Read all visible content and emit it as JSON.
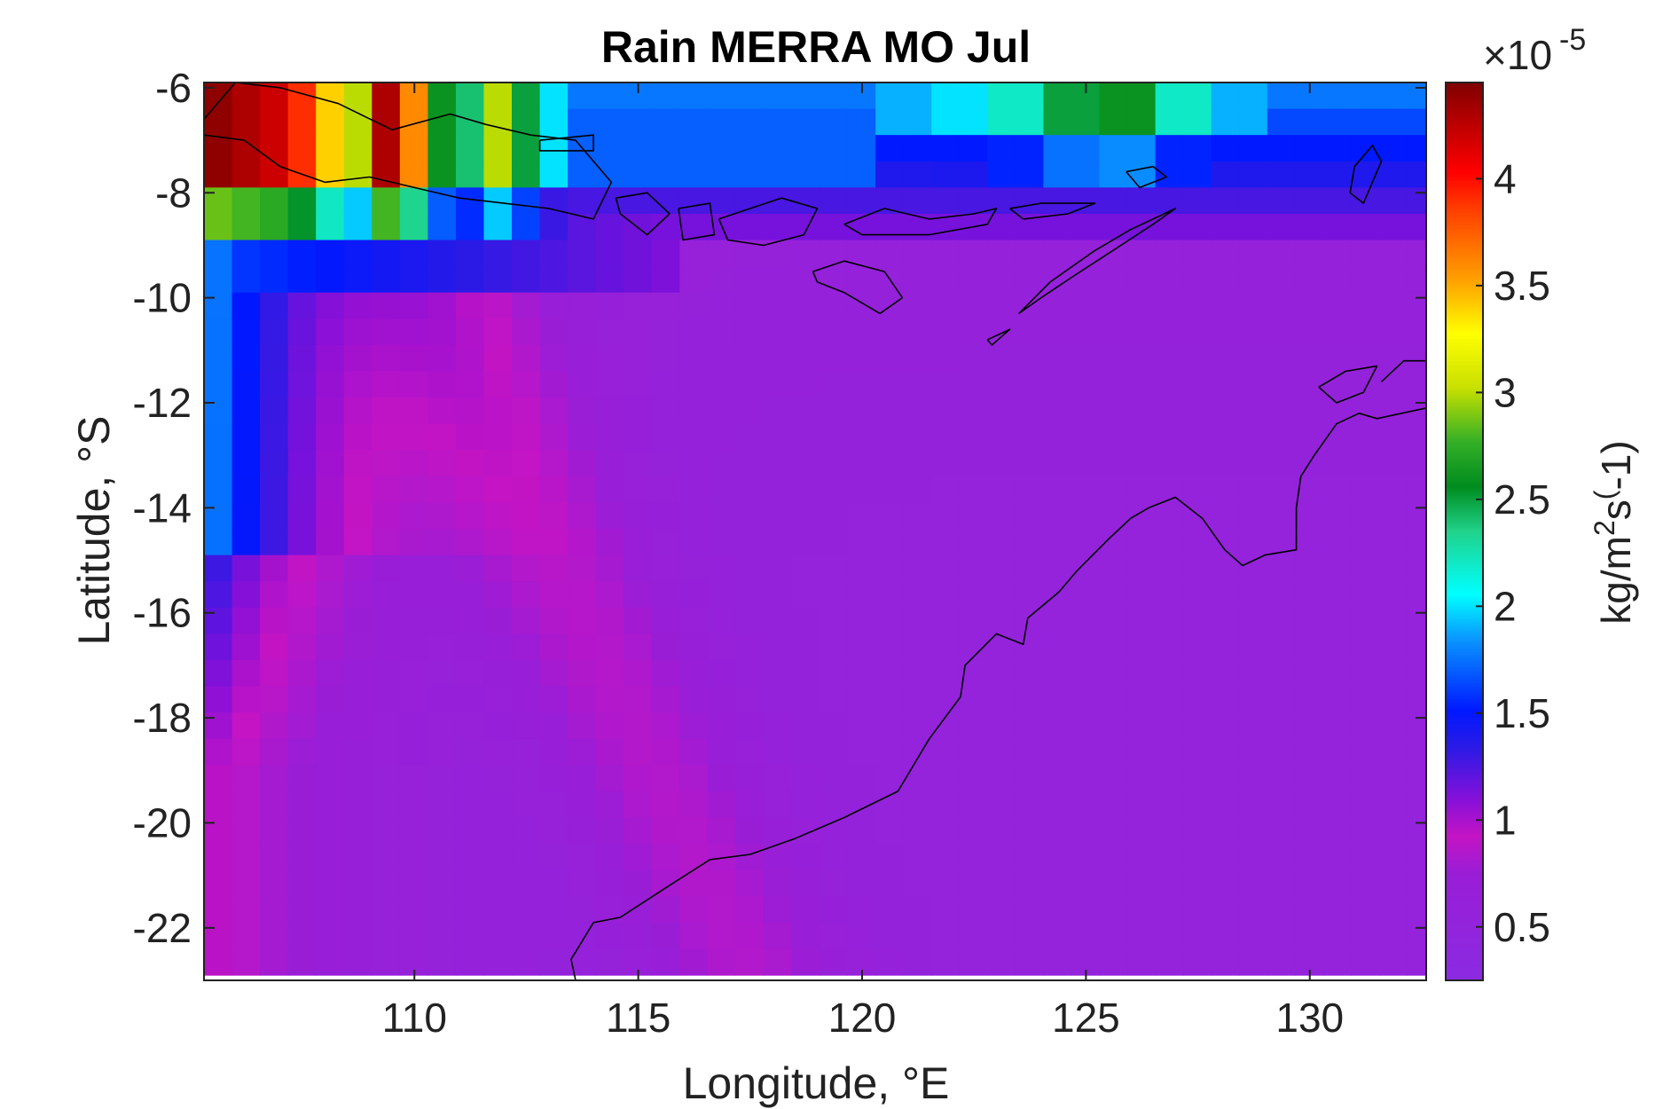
{
  "chart_data": {
    "type": "heatmap",
    "title": "Rain MERRA MO Jul",
    "xlabel": "Longitude, °E",
    "ylabel": "Latitude, °S",
    "xlim": [
      105.3,
      132.6
    ],
    "ylim": [
      -23.0,
      -5.9
    ],
    "x_ticks": [
      110,
      115,
      120,
      125,
      130
    ],
    "x_tick_labels": [
      "110",
      "115",
      "120",
      "125",
      "130"
    ],
    "y_ticks": [
      -6,
      -8,
      -10,
      -12,
      -14,
      -16,
      -18,
      -20,
      -22
    ],
    "y_tick_labels": [
      "-6",
      "-8",
      "-10",
      "-12",
      "-14",
      "-16",
      "-18",
      "-20",
      "-22"
    ],
    "grid": false,
    "colorbar": {
      "label": "kg/m²s⁽-1)",
      "label_main": "kg/m",
      "label_sup1": "2",
      "label_mid": "s",
      "label_sup2": "(",
      "label_end": "-1)",
      "scale_prefix": "×10",
      "scale_exponent": "-5",
      "range": [
        0.25,
        4.45
      ],
      "ticks": [
        0.5,
        1,
        1.5,
        2,
        2.5,
        3,
        3.5,
        4
      ],
      "tick_labels": [
        "0.5",
        "1",
        "1.5",
        "2",
        "2.5",
        "3",
        "3.5",
        "4"
      ],
      "colormap_stops": [
        [
          0.0,
          "#8a2be2"
        ],
        [
          0.12,
          "#9a1dd6"
        ],
        [
          0.16,
          "#c414c4"
        ],
        [
          0.2,
          "#8810d8"
        ],
        [
          0.26,
          "#2a1ae6"
        ],
        [
          0.3,
          "#0018ff"
        ],
        [
          0.38,
          "#0a96ff"
        ],
        [
          0.43,
          "#00ffff"
        ],
        [
          0.5,
          "#20d28a"
        ],
        [
          0.55,
          "#008c1e"
        ],
        [
          0.6,
          "#34b026"
        ],
        [
          0.66,
          "#c8e000"
        ],
        [
          0.72,
          "#ffff00"
        ],
        [
          0.78,
          "#ffa000"
        ],
        [
          0.86,
          "#ff3c00"
        ],
        [
          0.9,
          "#ff0000"
        ],
        [
          1.0,
          "#800000"
        ]
      ]
    },
    "grid_spec": {
      "lon_start": 105.3,
      "lon_step": 0.625,
      "n_lon": 44,
      "lat_top": -5.9,
      "lat_step": 0.5,
      "n_lat": 34
    },
    "description_of_values": "Monthly mean rain rate, units 1e-5 kg/m^2/s; values listed per region below",
    "value_regions": {
      "java_band_west": [
        4.4,
        4.3,
        4.2,
        3.9,
        3.4,
        3.0,
        4.3,
        3.6,
        2.6,
        2.4,
        3.0,
        2.5,
        2.0
      ],
      "north_strip_east": [
        1.9,
        2.0,
        2.2,
        2.5,
        2.6,
        2.2,
        1.9,
        1.6,
        1.4,
        1.2
      ],
      "west_ocean_cyan": 1.9,
      "offshore_blue": 1.4,
      "ocean_pink_band": 0.85,
      "interior_purple": 0.55
    },
    "coastline": {
      "australia_nw": [
        [
          113.6,
          -23.0
        ],
        [
          113.5,
          -22.6
        ],
        [
          114.0,
          -21.9
        ],
        [
          114.6,
          -21.8
        ],
        [
          115.5,
          -21.3
        ],
        [
          116.6,
          -20.7
        ],
        [
          117.5,
          -20.6
        ],
        [
          118.5,
          -20.3
        ],
        [
          119.6,
          -19.9
        ],
        [
          120.8,
          -19.4
        ],
        [
          121.5,
          -18.4
        ],
        [
          122.2,
          -17.6
        ],
        [
          122.3,
          -17.0
        ],
        [
          123.0,
          -16.4
        ],
        [
          123.6,
          -16.6
        ],
        [
          123.7,
          -16.1
        ],
        [
          124.4,
          -15.6
        ],
        [
          124.8,
          -15.2
        ],
        [
          125.5,
          -14.6
        ],
        [
          126.0,
          -14.2
        ],
        [
          126.4,
          -14.0
        ],
        [
          127.0,
          -13.8
        ],
        [
          127.6,
          -14.2
        ],
        [
          128.1,
          -14.8
        ],
        [
          128.5,
          -15.1
        ],
        [
          129.0,
          -14.9
        ],
        [
          129.7,
          -14.8
        ],
        [
          129.7,
          -14.0
        ],
        [
          129.8,
          -13.4
        ],
        [
          130.1,
          -13.0
        ],
        [
          130.6,
          -12.4
        ],
        [
          131.1,
          -12.2
        ],
        [
          131.5,
          -12.3
        ],
        [
          132.6,
          -12.1
        ]
      ],
      "cobourg": [
        [
          130.2,
          -11.7
        ],
        [
          130.8,
          -11.4
        ],
        [
          131.5,
          -11.3
        ],
        [
          131.2,
          -11.8
        ],
        [
          130.6,
          -12.0
        ],
        [
          130.2,
          -11.7
        ]
      ],
      "top_end_2": [
        [
          131.6,
          -11.6
        ],
        [
          132.1,
          -11.2
        ],
        [
          132.6,
          -11.2
        ]
      ],
      "java": [
        [
          105.3,
          -6.6
        ],
        [
          106.0,
          -5.9
        ],
        [
          107.0,
          -6.0
        ],
        [
          108.3,
          -6.3
        ],
        [
          109.5,
          -6.8
        ],
        [
          110.8,
          -6.5
        ],
        [
          111.6,
          -6.7
        ],
        [
          112.6,
          -6.9
        ],
        [
          113.6,
          -7.0
        ],
        [
          114.4,
          -7.8
        ],
        [
          114.0,
          -8.5
        ],
        [
          113.0,
          -8.3
        ],
        [
          112.0,
          -8.2
        ],
        [
          111.0,
          -8.1
        ],
        [
          110.0,
          -7.9
        ],
        [
          109.0,
          -7.7
        ],
        [
          108.0,
          -7.8
        ],
        [
          107.0,
          -7.5
        ],
        [
          106.2,
          -7.0
        ],
        [
          105.3,
          -6.9
        ]
      ],
      "madura": [
        [
          112.8,
          -7.0
        ],
        [
          114.0,
          -6.9
        ],
        [
          114.0,
          -7.2
        ],
        [
          112.8,
          -7.2
        ],
        [
          112.8,
          -7.0
        ]
      ],
      "bali": [
        [
          114.5,
          -8.1
        ],
        [
          115.2,
          -8.0
        ],
        [
          115.7,
          -8.4
        ],
        [
          115.2,
          -8.8
        ],
        [
          114.6,
          -8.4
        ],
        [
          114.5,
          -8.1
        ]
      ],
      "lombok": [
        [
          115.9,
          -8.3
        ],
        [
          116.6,
          -8.2
        ],
        [
          116.7,
          -8.8
        ],
        [
          116.0,
          -8.9
        ],
        [
          115.9,
          -8.3
        ]
      ],
      "sumbawa": [
        [
          116.8,
          -8.5
        ],
        [
          117.5,
          -8.3
        ],
        [
          118.2,
          -8.1
        ],
        [
          119.0,
          -8.3
        ],
        [
          118.7,
          -8.8
        ],
        [
          117.8,
          -9.0
        ],
        [
          117.0,
          -8.9
        ],
        [
          116.8,
          -8.5
        ]
      ],
      "flores": [
        [
          119.6,
          -8.6
        ],
        [
          120.5,
          -8.3
        ],
        [
          121.5,
          -8.5
        ],
        [
          122.5,
          -8.4
        ],
        [
          123.0,
          -8.3
        ],
        [
          122.8,
          -8.6
        ],
        [
          121.5,
          -8.8
        ],
        [
          120.0,
          -8.8
        ],
        [
          119.6,
          -8.6
        ]
      ],
      "alor_chain": [
        [
          123.3,
          -8.3
        ],
        [
          124.0,
          -8.2
        ],
        [
          124.6,
          -8.2
        ],
        [
          125.2,
          -8.2
        ],
        [
          124.6,
          -8.4
        ],
        [
          123.6,
          -8.5
        ],
        [
          123.3,
          -8.3
        ]
      ],
      "sumba": [
        [
          118.9,
          -9.5
        ],
        [
          119.6,
          -9.3
        ],
        [
          120.5,
          -9.5
        ],
        [
          120.9,
          -10.0
        ],
        [
          120.4,
          -10.3
        ],
        [
          119.6,
          -9.9
        ],
        [
          119.0,
          -9.7
        ],
        [
          118.9,
          -9.5
        ]
      ],
      "timor": [
        [
          123.5,
          -10.3
        ],
        [
          124.2,
          -9.7
        ],
        [
          125.2,
          -9.1
        ],
        [
          126.0,
          -8.7
        ],
        [
          127.0,
          -8.3
        ],
        [
          126.5,
          -8.6
        ],
        [
          125.6,
          -9.1
        ],
        [
          124.7,
          -9.6
        ],
        [
          124.0,
          -10.0
        ],
        [
          123.5,
          -10.3
        ]
      ],
      "rote": [
        [
          122.8,
          -10.8
        ],
        [
          123.3,
          -10.6
        ],
        [
          122.9,
          -10.9
        ],
        [
          122.8,
          -10.8
        ]
      ],
      "wetar": [
        [
          125.9,
          -7.6
        ],
        [
          126.5,
          -7.5
        ],
        [
          126.8,
          -7.7
        ],
        [
          126.2,
          -7.9
        ],
        [
          125.9,
          -7.6
        ]
      ],
      "tanimbar": [
        [
          131.0,
          -7.5
        ],
        [
          131.4,
          -7.1
        ],
        [
          131.6,
          -7.4
        ],
        [
          131.2,
          -8.2
        ],
        [
          130.9,
          -8.0
        ],
        [
          131.0,
          -7.5
        ]
      ]
    }
  }
}
